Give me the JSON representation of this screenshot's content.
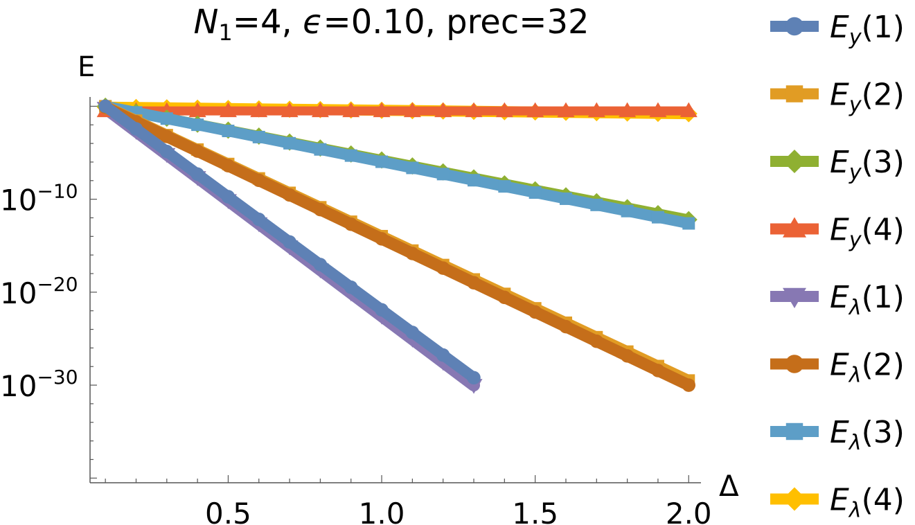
{
  "chart_data": {
    "type": "line",
    "title_parts": {
      "n_symbol": "N",
      "n_subscript": "1",
      "n_value": "=4, ",
      "eps_symbol": "ϵ",
      "eps_value": "=0.10, prec=32"
    },
    "xlabel": "Δ",
    "ylabel": "E",
    "x_scale": "linear",
    "y_scale": "log",
    "xlim": [
      0.05,
      2.04
    ],
    "ylim_log10": [
      -40.5,
      1.0
    ],
    "x_ticks": [
      {
        "value": 0.5,
        "label": "0.5"
      },
      {
        "value": 1.0,
        "label": "1.0"
      },
      {
        "value": 1.5,
        "label": "1.5"
      },
      {
        "value": 2.0,
        "label": "2.0"
      }
    ],
    "y_ticks": [
      {
        "log10": -10,
        "base": "10",
        "exp": "−10"
      },
      {
        "log10": -20,
        "base": "10",
        "exp": "−20"
      },
      {
        "log10": -30,
        "base": "10",
        "exp": "−30"
      }
    ],
    "legend_position": "right",
    "series": [
      {
        "base": "E",
        "sub": "y",
        "index": "(1)",
        "color": "#5e81b5",
        "marker": "circle",
        "x_start": 0.1,
        "x_end": 1.3,
        "y_log10_start": 0.0,
        "y_log10_end": -29.2
      },
      {
        "base": "E",
        "sub": "y",
        "index": "(2)",
        "color": "#e19c24",
        "marker": "square",
        "x_start": 0.1,
        "x_end": 2.0,
        "y_log10_start": 0.0,
        "y_log10_end": -29.5
      },
      {
        "base": "E",
        "sub": "y",
        "index": "(3)",
        "color": "#8fb032",
        "marker": "diamond",
        "x_start": 0.1,
        "x_end": 2.0,
        "y_log10_start": 0.0,
        "y_log10_end": -12.2
      },
      {
        "base": "E",
        "sub": "y",
        "index": "(4)",
        "color": "#eb6235",
        "marker": "triangle-up",
        "x_start": 0.1,
        "x_end": 2.0,
        "y_log10_start": -0.5,
        "y_log10_end": -0.5
      },
      {
        "base": "E",
        "sub": "λ",
        "index": "(1)",
        "color": "#8778b3",
        "marker": "triangle-down",
        "x_start": 0.1,
        "x_end": 1.3,
        "y_log10_start": -0.2,
        "y_log10_end": -30.0
      },
      {
        "base": "E",
        "sub": "λ",
        "index": "(2)",
        "color": "#c56e1a",
        "marker": "circle",
        "x_start": 0.1,
        "x_end": 2.0,
        "y_log10_start": -0.1,
        "y_log10_end": -30.0
      },
      {
        "base": "E",
        "sub": "λ",
        "index": "(3)",
        "color": "#5d9ec7",
        "marker": "square",
        "x_start": 0.1,
        "x_end": 2.0,
        "y_log10_start": 0.0,
        "y_log10_end": -12.6
      },
      {
        "base": "E",
        "sub": "λ",
        "index": "(4)",
        "color": "#ffbf00",
        "marker": "diamond",
        "x_start": 0.1,
        "x_end": 2.0,
        "y_log10_start": -0.1,
        "y_log10_end": -0.8
      }
    ]
  }
}
